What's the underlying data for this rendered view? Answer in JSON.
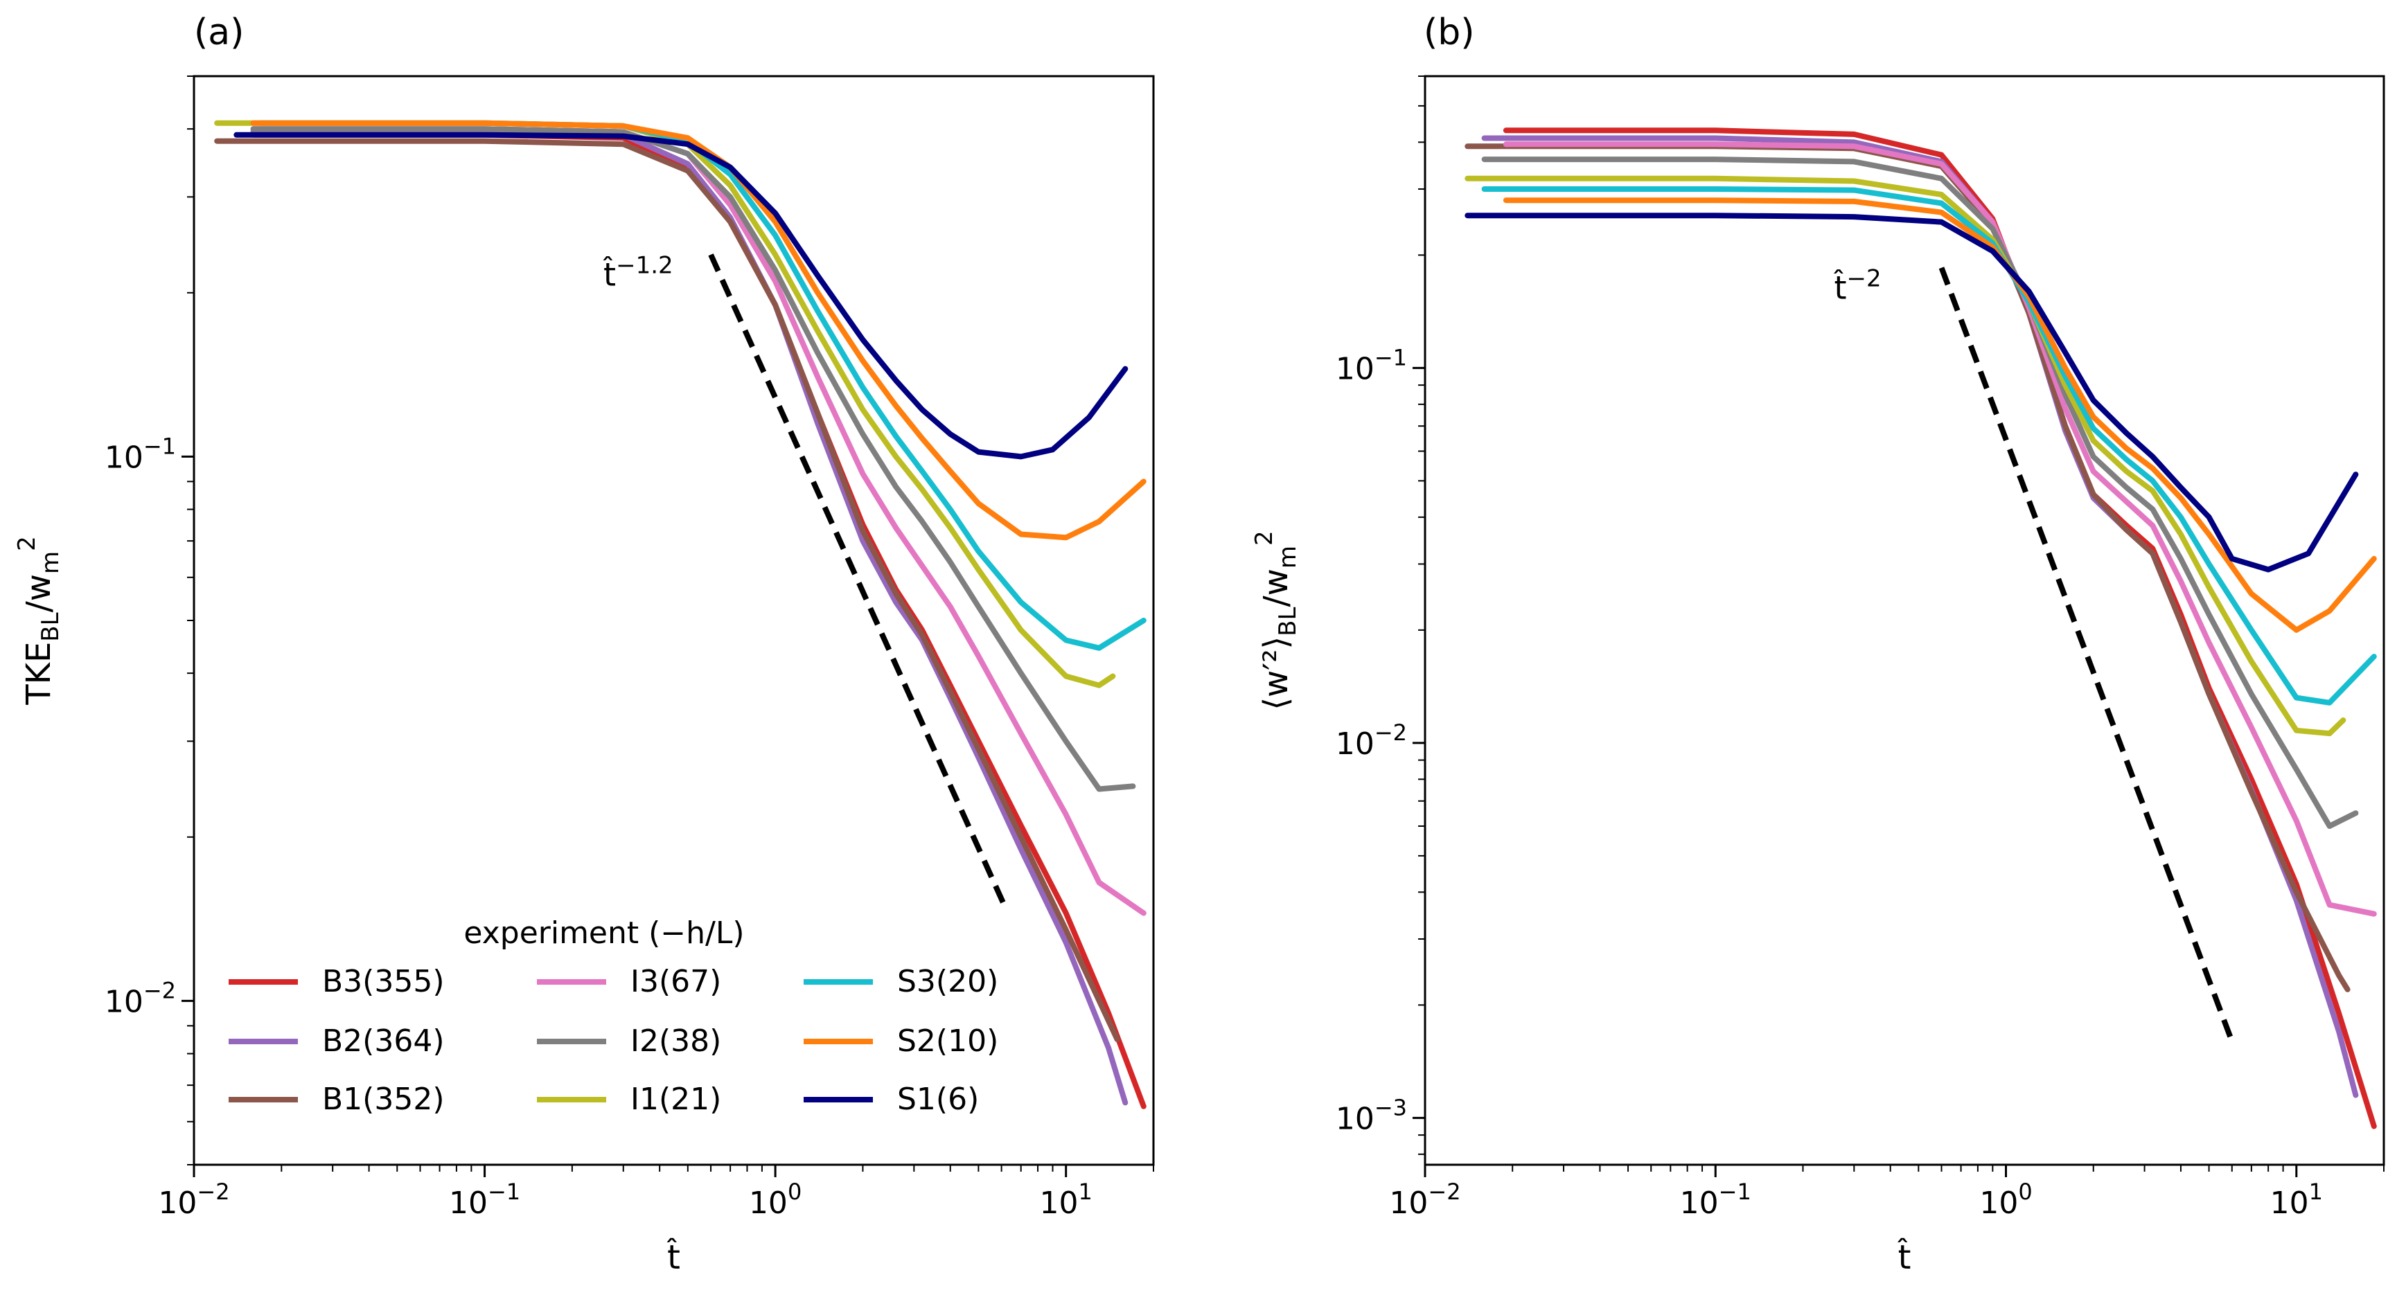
{
  "figure": {
    "legend_title": "experiment (−h/L)"
  },
  "chart_data": [
    {
      "type": "line",
      "panel_label": "(a)",
      "xlabel": "t̂",
      "ylabel_main": "TKE",
      "ylabel_sub": "BL",
      "ylabel_tail": "/w",
      "ylabel_tail_sub": "m",
      "ylabel_tail_sup": "2",
      "xscale": "log",
      "yscale": "log",
      "xlim": [
        0.01,
        20
      ],
      "ylim": [
        0.005,
        0.5
      ],
      "xticks": [
        {
          "value": 0.01,
          "base": "10",
          "exp": "−2"
        },
        {
          "value": 0.1,
          "base": "10",
          "exp": "−1"
        },
        {
          "value": 1,
          "base": "10",
          "exp": "0"
        },
        {
          "value": 10,
          "base": "10",
          "exp": "1"
        }
      ],
      "yticks": [
        {
          "value": 0.01,
          "base": "10",
          "exp": "−2"
        },
        {
          "value": 0.1,
          "base": "10",
          "exp": "−1"
        }
      ],
      "reference_line": {
        "label_base": "t̂",
        "label_exp": "−1.2",
        "x": [
          0.6,
          6.2
        ],
        "y": [
          0.235,
          0.0148
        ]
      },
      "series": [
        {
          "name": "B3(355)",
          "color": "#d62728",
          "x": [
            0.016,
            0.1,
            0.3,
            0.5,
            0.7,
            1.0,
            1.4,
            2.0,
            2.6,
            3.2,
            4.0,
            5.0,
            7.0,
            10,
            14,
            18.5
          ],
          "y": [
            0.39,
            0.39,
            0.385,
            0.34,
            0.27,
            0.19,
            0.12,
            0.075,
            0.057,
            0.048,
            0.038,
            0.03,
            0.021,
            0.0145,
            0.0095,
            0.0064
          ]
        },
        {
          "name": "B2(364)",
          "color": "#9467bd",
          "x": [
            0.016,
            0.1,
            0.3,
            0.5,
            0.7,
            1.0,
            1.4,
            2.0,
            2.6,
            3.2,
            4.0,
            5.0,
            7.0,
            10,
            14,
            16
          ],
          "y": [
            0.395,
            0.395,
            0.39,
            0.345,
            0.275,
            0.19,
            0.115,
            0.07,
            0.054,
            0.046,
            0.036,
            0.028,
            0.019,
            0.0128,
            0.0082,
            0.0065
          ]
        },
        {
          "name": "B1(352)",
          "color": "#8c564b",
          "x": [
            0.012,
            0.1,
            0.3,
            0.5,
            0.7,
            1.0,
            1.4,
            2.0,
            2.6,
            3.2,
            4.0,
            5.0,
            7.0,
            10,
            14,
            15
          ],
          "y": [
            0.38,
            0.38,
            0.375,
            0.335,
            0.27,
            0.19,
            0.12,
            0.073,
            0.056,
            0.047,
            0.037,
            0.029,
            0.02,
            0.0135,
            0.0092,
            0.0085
          ]
        },
        {
          "name": "I3(67)",
          "color": "#e377c2",
          "x": [
            0.016,
            0.1,
            0.3,
            0.5,
            0.7,
            1.0,
            1.4,
            2.0,
            2.6,
            3.2,
            4.0,
            5.0,
            7.0,
            10,
            13,
            18.5
          ],
          "y": [
            0.4,
            0.4,
            0.395,
            0.36,
            0.29,
            0.21,
            0.14,
            0.093,
            0.074,
            0.063,
            0.053,
            0.043,
            0.031,
            0.022,
            0.0165,
            0.0145
          ]
        },
        {
          "name": "I2(38)",
          "color": "#7f7f7f",
          "x": [
            0.016,
            0.1,
            0.3,
            0.5,
            0.7,
            1.0,
            1.4,
            2.0,
            2.6,
            3.2,
            4.0,
            5.0,
            7.0,
            10,
            13,
            17
          ],
          "y": [
            0.4,
            0.4,
            0.395,
            0.36,
            0.3,
            0.22,
            0.155,
            0.11,
            0.088,
            0.076,
            0.064,
            0.053,
            0.04,
            0.03,
            0.0245,
            0.0248
          ]
        },
        {
          "name": "I1(21)",
          "color": "#bcbd22",
          "x": [
            0.012,
            0.1,
            0.3,
            0.5,
            0.7,
            1.0,
            1.4,
            2.0,
            2.6,
            3.2,
            4.0,
            5.0,
            7.0,
            10,
            13,
            14.5
          ],
          "y": [
            0.41,
            0.41,
            0.405,
            0.375,
            0.315,
            0.235,
            0.17,
            0.122,
            0.1,
            0.087,
            0.074,
            0.062,
            0.048,
            0.0395,
            0.038,
            0.0395
          ]
        },
        {
          "name": "S3(20)",
          "color": "#17becf",
          "x": [
            0.017,
            0.1,
            0.3,
            0.5,
            0.7,
            1.0,
            1.4,
            2.0,
            2.6,
            3.2,
            4.0,
            5.0,
            7.0,
            10,
            13,
            18.5
          ],
          "y": [
            0.41,
            0.41,
            0.405,
            0.38,
            0.33,
            0.255,
            0.185,
            0.134,
            0.109,
            0.094,
            0.08,
            0.067,
            0.054,
            0.046,
            0.0445,
            0.05
          ]
        },
        {
          "name": "S2(10)",
          "color": "#ff7f0e",
          "x": [
            0.016,
            0.1,
            0.3,
            0.5,
            0.7,
            1.0,
            1.4,
            2.0,
            2.6,
            3.2,
            4.0,
            5.0,
            7.0,
            10,
            13,
            18.5
          ],
          "y": [
            0.41,
            0.41,
            0.405,
            0.385,
            0.34,
            0.27,
            0.2,
            0.15,
            0.124,
            0.108,
            0.094,
            0.082,
            0.072,
            0.071,
            0.076,
            0.09
          ]
        },
        {
          "name": "S1(6)",
          "color": "#000080",
          "x": [
            0.014,
            0.1,
            0.3,
            0.5,
            0.7,
            1.0,
            1.4,
            2.0,
            2.6,
            3.2,
            4.0,
            5.0,
            7.0,
            9.0,
            12,
            16
          ],
          "y": [
            0.39,
            0.39,
            0.388,
            0.375,
            0.34,
            0.28,
            0.215,
            0.164,
            0.138,
            0.122,
            0.11,
            0.102,
            0.1,
            0.103,
            0.118,
            0.145
          ]
        }
      ]
    },
    {
      "type": "line",
      "panel_label": "(b)",
      "xlabel": "t̂",
      "ylabel_main": "⟨w′²⟩",
      "ylabel_sub": "BL",
      "ylabel_tail": "/w",
      "ylabel_tail_sub": "m",
      "ylabel_tail_sup": "2",
      "xscale": "log",
      "yscale": "log",
      "xlim": [
        0.01,
        20
      ],
      "ylim": [
        0.00075,
        0.6
      ],
      "xticks": [
        {
          "value": 0.01,
          "base": "10",
          "exp": "−2"
        },
        {
          "value": 0.1,
          "base": "10",
          "exp": "−1"
        },
        {
          "value": 1,
          "base": "10",
          "exp": "0"
        },
        {
          "value": 10,
          "base": "10",
          "exp": "1"
        }
      ],
      "yticks": [
        {
          "value": 0.001,
          "base": "10",
          "exp": "−3"
        },
        {
          "value": 0.01,
          "base": "10",
          "exp": "−2"
        },
        {
          "value": 0.1,
          "base": "10",
          "exp": "−1"
        }
      ],
      "reference_line": {
        "label_base": "t̂",
        "label_exp": "−2",
        "x": [
          0.6,
          6.0
        ],
        "y": [
          0.185,
          0.0016
        ]
      },
      "series": [
        {
          "name": "B3(355)",
          "color": "#d62728",
          "x": [
            0.019,
            0.1,
            0.3,
            0.6,
            0.9,
            1.2,
            1.6,
            2.0,
            2.6,
            3.2,
            4.0,
            5.0,
            7.0,
            10,
            14,
            18.5
          ],
          "y": [
            0.43,
            0.43,
            0.42,
            0.37,
            0.25,
            0.14,
            0.07,
            0.046,
            0.038,
            0.033,
            0.022,
            0.014,
            0.008,
            0.0042,
            0.0019,
            0.00095
          ]
        },
        {
          "name": "B2(364)",
          "color": "#9467bd",
          "x": [
            0.016,
            0.1,
            0.3,
            0.6,
            0.9,
            1.2,
            1.6,
            2.0,
            2.6,
            3.2,
            4.0,
            5.0,
            7.0,
            10,
            14,
            16
          ],
          "y": [
            0.41,
            0.41,
            0.4,
            0.355,
            0.245,
            0.14,
            0.068,
            0.045,
            0.037,
            0.032,
            0.021,
            0.0135,
            0.0075,
            0.0038,
            0.0017,
            0.00115
          ]
        },
        {
          "name": "B1(352)",
          "color": "#8c564b",
          "x": [
            0.014,
            0.1,
            0.3,
            0.6,
            0.9,
            1.2,
            1.6,
            2.0,
            2.6,
            3.2,
            4.0,
            5.0,
            7.0,
            10,
            14,
            15
          ],
          "y": [
            0.39,
            0.39,
            0.385,
            0.345,
            0.24,
            0.14,
            0.07,
            0.046,
            0.037,
            0.032,
            0.021,
            0.0135,
            0.0074,
            0.004,
            0.0024,
            0.0022
          ]
        },
        {
          "name": "I3(67)",
          "color": "#e377c2",
          "x": [
            0.019,
            0.1,
            0.3,
            0.6,
            0.9,
            1.2,
            1.6,
            2.0,
            2.6,
            3.2,
            4.0,
            5.0,
            7.0,
            10,
            13,
            18.5
          ],
          "y": [
            0.395,
            0.395,
            0.39,
            0.35,
            0.245,
            0.145,
            0.078,
            0.053,
            0.044,
            0.038,
            0.027,
            0.0185,
            0.011,
            0.0062,
            0.0037,
            0.0035
          ]
        },
        {
          "name": "I2(38)",
          "color": "#7f7f7f",
          "x": [
            0.016,
            0.1,
            0.3,
            0.6,
            0.9,
            1.2,
            1.6,
            2.0,
            2.6,
            3.2,
            4.0,
            5.0,
            7.0,
            10,
            13,
            16
          ],
          "y": [
            0.36,
            0.36,
            0.355,
            0.32,
            0.235,
            0.15,
            0.085,
            0.058,
            0.048,
            0.042,
            0.031,
            0.022,
            0.0135,
            0.0085,
            0.006,
            0.0065
          ]
        },
        {
          "name": "I1(21)",
          "color": "#bcbd22",
          "x": [
            0.014,
            0.1,
            0.3,
            0.6,
            0.9,
            1.2,
            1.6,
            2.0,
            2.6,
            3.2,
            4.0,
            5.0,
            7.0,
            10,
            13,
            14.5
          ],
          "y": [
            0.32,
            0.32,
            0.315,
            0.29,
            0.22,
            0.15,
            0.09,
            0.064,
            0.053,
            0.047,
            0.036,
            0.026,
            0.0165,
            0.0108,
            0.0106,
            0.0115
          ]
        },
        {
          "name": "S3(20)",
          "color": "#17becf",
          "x": [
            0.016,
            0.1,
            0.3,
            0.6,
            0.9,
            1.2,
            1.6,
            2.0,
            2.6,
            3.2,
            4.0,
            5.0,
            7.0,
            10,
            13,
            18.5
          ],
          "y": [
            0.3,
            0.3,
            0.298,
            0.275,
            0.215,
            0.15,
            0.095,
            0.069,
            0.057,
            0.05,
            0.04,
            0.03,
            0.02,
            0.0132,
            0.0128,
            0.017
          ]
        },
        {
          "name": "S2(10)",
          "color": "#ff7f0e",
          "x": [
            0.019,
            0.1,
            0.3,
            0.6,
            0.9,
            1.2,
            1.6,
            2.0,
            2.6,
            3.2,
            4.0,
            5.0,
            7.0,
            10,
            13,
            18.5
          ],
          "y": [
            0.28,
            0.28,
            0.278,
            0.26,
            0.21,
            0.155,
            0.1,
            0.074,
            0.061,
            0.054,
            0.045,
            0.036,
            0.025,
            0.02,
            0.0225,
            0.031
          ]
        },
        {
          "name": "S1(6)",
          "color": "#000080",
          "x": [
            0.014,
            0.1,
            0.3,
            0.6,
            0.9,
            1.2,
            1.6,
            2.0,
            2.6,
            3.2,
            4.0,
            5.0,
            6.0,
            8.0,
            11,
            16
          ],
          "y": [
            0.255,
            0.255,
            0.253,
            0.245,
            0.205,
            0.16,
            0.11,
            0.082,
            0.067,
            0.058,
            0.048,
            0.04,
            0.031,
            0.029,
            0.032,
            0.052
          ]
        }
      ]
    }
  ]
}
